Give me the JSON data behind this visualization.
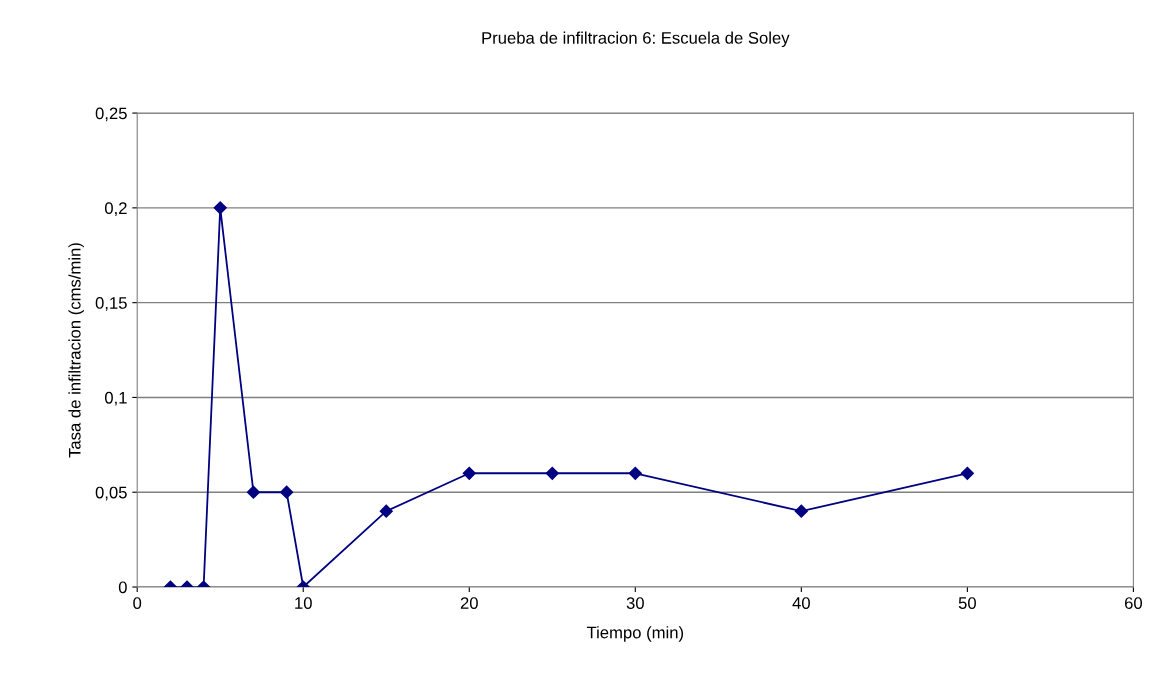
{
  "chart_data": {
    "type": "line",
    "title": "Prueba de infiltracion 6: Escuela de Soley",
    "xlabel": "Tiempo (min)",
    "ylabel": "Tasa de infiltracion (cms/min)",
    "x": [
      2,
      3,
      4,
      5,
      7,
      9,
      10,
      15,
      20,
      25,
      30,
      40,
      50
    ],
    "series": [
      {
        "color": "#000080",
        "values": [
          0,
          0,
          0,
          0.2,
          0.05,
          0.05,
          0,
          0.04,
          0.06,
          0.06,
          0.06,
          0.04,
          0.06
        ]
      }
    ],
    "xlim": [
      0,
      60
    ],
    "xticks": [
      0,
      10,
      20,
      30,
      40,
      50,
      60
    ],
    "ylim": [
      0,
      0.25
    ],
    "yticks": [
      0,
      {
        "value": 0.05,
        "label": "0,05"
      },
      {
        "value": 0.1,
        "label": "0,1"
      },
      {
        "value": 0.15,
        "label": "0,15"
      },
      {
        "value": 0.2,
        "label": "0,2"
      },
      {
        "value": 0.25,
        "label": "0,25"
      }
    ],
    "grid": "y",
    "marker": "diamond",
    "line_style": "solid"
  }
}
